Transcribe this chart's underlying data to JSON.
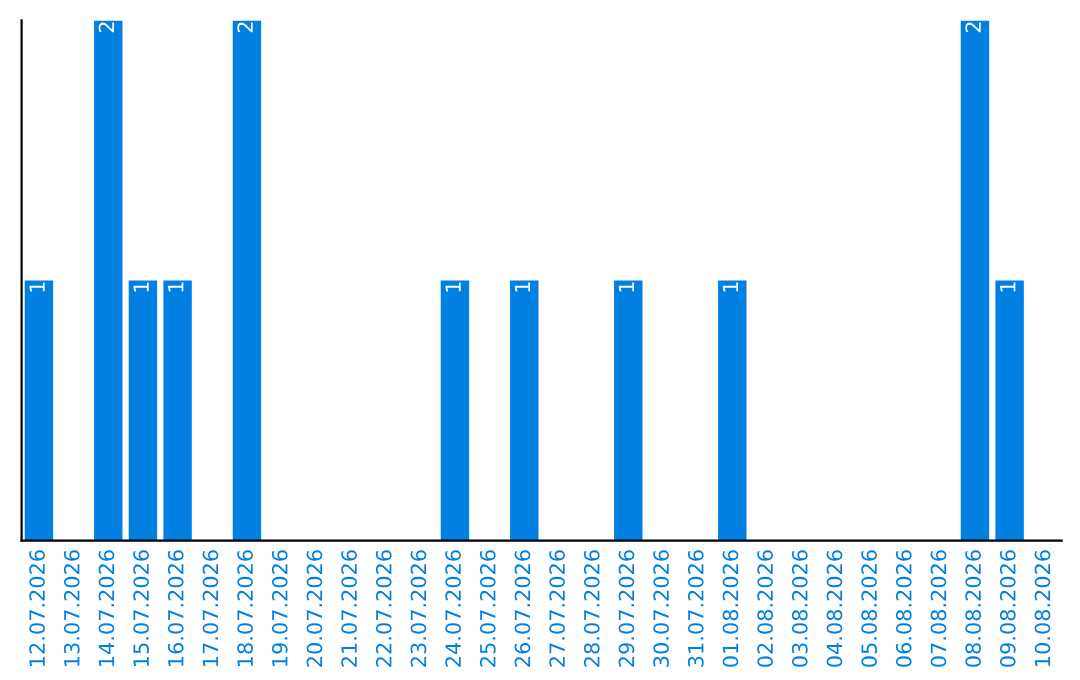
{
  "chart_data": {
    "type": "bar",
    "categories": [
      "12.07.2026",
      "13.07.2026",
      "14.07.2026",
      "15.07.2026",
      "16.07.2026",
      "17.07.2026",
      "18.07.2026",
      "19.07.2026",
      "20.07.2026",
      "21.07.2026",
      "22.07.2026",
      "23.07.2026",
      "24.07.2026",
      "25.07.2026",
      "26.07.2026",
      "27.07.2026",
      "28.07.2026",
      "29.07.2026",
      "30.07.2026",
      "31.07.2026",
      "01.08.2026",
      "02.08.2026",
      "03.08.2026",
      "04.08.2026",
      "05.08.2026",
      "06.08.2026",
      "07.08.2026",
      "08.08.2026",
      "09.08.2026",
      "10.08.2026"
    ],
    "values": [
      1,
      0,
      2,
      1,
      1,
      0,
      2,
      0,
      0,
      0,
      0,
      0,
      1,
      0,
      1,
      0,
      0,
      1,
      0,
      0,
      1,
      0,
      0,
      0,
      0,
      0,
      0,
      2,
      1,
      0
    ],
    "value_labels": [
      "1",
      null,
      "2",
      "1",
      "1",
      null,
      "2",
      null,
      null,
      null,
      null,
      null,
      "1",
      null,
      "1",
      null,
      null,
      "1",
      null,
      null,
      "1",
      null,
      null,
      null,
      null,
      null,
      null,
      "2",
      "1",
      null
    ],
    "color": "#0080e0",
    "grid": false,
    "legend": false
  }
}
